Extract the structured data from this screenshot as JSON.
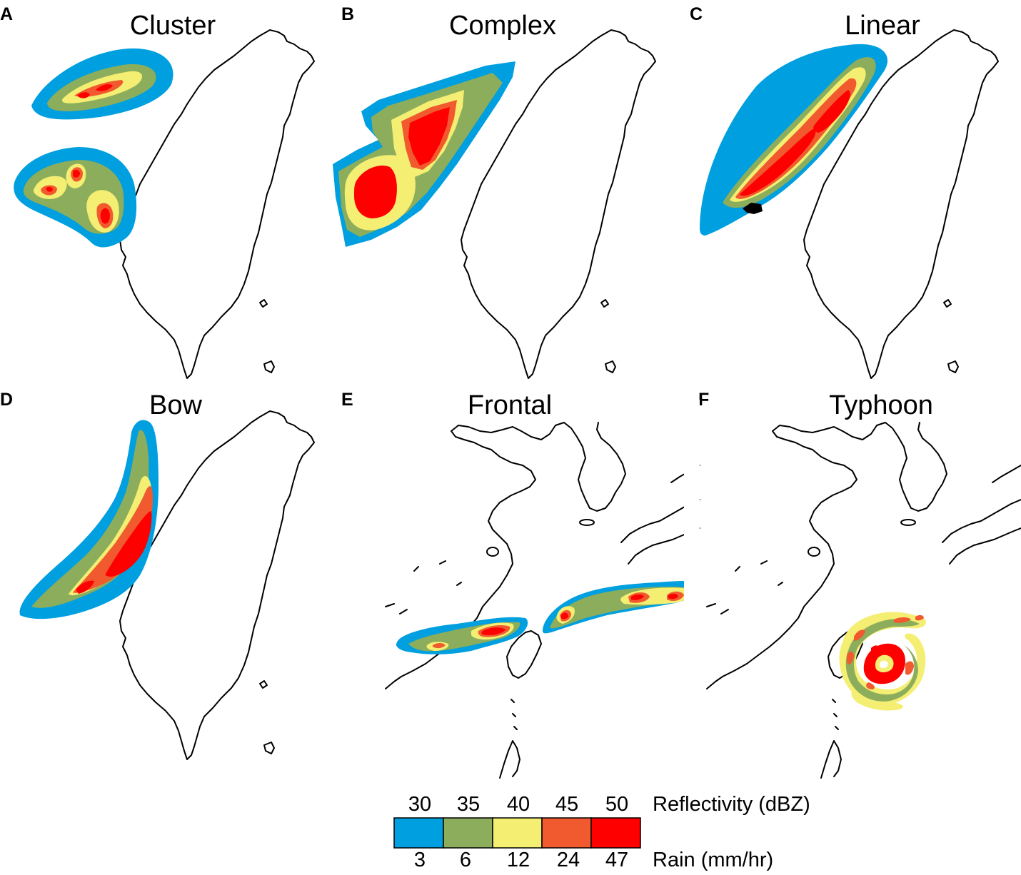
{
  "colors": {
    "level_1": "#009fdf",
    "level_2": "#8bad5c",
    "level_3": "#f4ee72",
    "level_4": "#f05a2e",
    "level_5": "#ff0000",
    "coast": "#000000"
  },
  "panels": [
    {
      "letter": "A",
      "title": "Cluster"
    },
    {
      "letter": "B",
      "title": "Complex"
    },
    {
      "letter": "C",
      "title": "Linear"
    },
    {
      "letter": "D",
      "title": "Bow"
    },
    {
      "letter": "E",
      "title": "Frontal"
    },
    {
      "letter": "F",
      "title": "Typhoon"
    }
  ],
  "legend": {
    "reflectivity_label": "Reflectivity (dBZ)",
    "rain_label": "Rain (mm/hr)",
    "reflectivity_values": [
      "30",
      "35",
      "40",
      "45",
      "50"
    ],
    "rain_values": [
      "3",
      "6",
      "12",
      "24",
      "47"
    ]
  }
}
